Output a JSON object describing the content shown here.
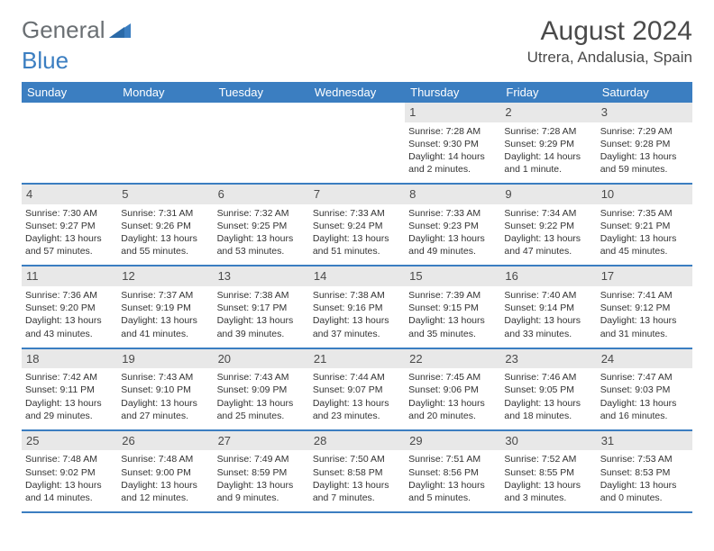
{
  "logo": {
    "text1": "General",
    "text2": "Blue"
  },
  "title": "August 2024",
  "location": "Utrera, Andalusia, Spain",
  "colors": {
    "header_bg": "#3b7ec1",
    "daynum_bg": "#e8e8e8",
    "text": "#333333",
    "title_text": "#4a4a4a",
    "logo_gray": "#6a6f73",
    "logo_blue": "#3b7ec1"
  },
  "dayNames": [
    "Sunday",
    "Monday",
    "Tuesday",
    "Wednesday",
    "Thursday",
    "Friday",
    "Saturday"
  ],
  "weeks": [
    [
      {
        "empty": true
      },
      {
        "empty": true
      },
      {
        "empty": true
      },
      {
        "empty": true
      },
      {
        "n": "1",
        "sr": "7:28 AM",
        "ss": "9:30 PM",
        "dl": "14 hours and 2 minutes."
      },
      {
        "n": "2",
        "sr": "7:28 AM",
        "ss": "9:29 PM",
        "dl": "14 hours and 1 minute."
      },
      {
        "n": "3",
        "sr": "7:29 AM",
        "ss": "9:28 PM",
        "dl": "13 hours and 59 minutes."
      }
    ],
    [
      {
        "n": "4",
        "sr": "7:30 AM",
        "ss": "9:27 PM",
        "dl": "13 hours and 57 minutes."
      },
      {
        "n": "5",
        "sr": "7:31 AM",
        "ss": "9:26 PM",
        "dl": "13 hours and 55 minutes."
      },
      {
        "n": "6",
        "sr": "7:32 AM",
        "ss": "9:25 PM",
        "dl": "13 hours and 53 minutes."
      },
      {
        "n": "7",
        "sr": "7:33 AM",
        "ss": "9:24 PM",
        "dl": "13 hours and 51 minutes."
      },
      {
        "n": "8",
        "sr": "7:33 AM",
        "ss": "9:23 PM",
        "dl": "13 hours and 49 minutes."
      },
      {
        "n": "9",
        "sr": "7:34 AM",
        "ss": "9:22 PM",
        "dl": "13 hours and 47 minutes."
      },
      {
        "n": "10",
        "sr": "7:35 AM",
        "ss": "9:21 PM",
        "dl": "13 hours and 45 minutes."
      }
    ],
    [
      {
        "n": "11",
        "sr": "7:36 AM",
        "ss": "9:20 PM",
        "dl": "13 hours and 43 minutes."
      },
      {
        "n": "12",
        "sr": "7:37 AM",
        "ss": "9:19 PM",
        "dl": "13 hours and 41 minutes."
      },
      {
        "n": "13",
        "sr": "7:38 AM",
        "ss": "9:17 PM",
        "dl": "13 hours and 39 minutes."
      },
      {
        "n": "14",
        "sr": "7:38 AM",
        "ss": "9:16 PM",
        "dl": "13 hours and 37 minutes."
      },
      {
        "n": "15",
        "sr": "7:39 AM",
        "ss": "9:15 PM",
        "dl": "13 hours and 35 minutes."
      },
      {
        "n": "16",
        "sr": "7:40 AM",
        "ss": "9:14 PM",
        "dl": "13 hours and 33 minutes."
      },
      {
        "n": "17",
        "sr": "7:41 AM",
        "ss": "9:12 PM",
        "dl": "13 hours and 31 minutes."
      }
    ],
    [
      {
        "n": "18",
        "sr": "7:42 AM",
        "ss": "9:11 PM",
        "dl": "13 hours and 29 minutes."
      },
      {
        "n": "19",
        "sr": "7:43 AM",
        "ss": "9:10 PM",
        "dl": "13 hours and 27 minutes."
      },
      {
        "n": "20",
        "sr": "7:43 AM",
        "ss": "9:09 PM",
        "dl": "13 hours and 25 minutes."
      },
      {
        "n": "21",
        "sr": "7:44 AM",
        "ss": "9:07 PM",
        "dl": "13 hours and 23 minutes."
      },
      {
        "n": "22",
        "sr": "7:45 AM",
        "ss": "9:06 PM",
        "dl": "13 hours and 20 minutes."
      },
      {
        "n": "23",
        "sr": "7:46 AM",
        "ss": "9:05 PM",
        "dl": "13 hours and 18 minutes."
      },
      {
        "n": "24",
        "sr": "7:47 AM",
        "ss": "9:03 PM",
        "dl": "13 hours and 16 minutes."
      }
    ],
    [
      {
        "n": "25",
        "sr": "7:48 AM",
        "ss": "9:02 PM",
        "dl": "13 hours and 14 minutes."
      },
      {
        "n": "26",
        "sr": "7:48 AM",
        "ss": "9:00 PM",
        "dl": "13 hours and 12 minutes."
      },
      {
        "n": "27",
        "sr": "7:49 AM",
        "ss": "8:59 PM",
        "dl": "13 hours and 9 minutes."
      },
      {
        "n": "28",
        "sr": "7:50 AM",
        "ss": "8:58 PM",
        "dl": "13 hours and 7 minutes."
      },
      {
        "n": "29",
        "sr": "7:51 AM",
        "ss": "8:56 PM",
        "dl": "13 hours and 5 minutes."
      },
      {
        "n": "30",
        "sr": "7:52 AM",
        "ss": "8:55 PM",
        "dl": "13 hours and 3 minutes."
      },
      {
        "n": "31",
        "sr": "7:53 AM",
        "ss": "8:53 PM",
        "dl": "13 hours and 0 minutes."
      }
    ]
  ],
  "labels": {
    "sunrise": "Sunrise: ",
    "sunset": "Sunset: ",
    "daylight": "Daylight: "
  }
}
